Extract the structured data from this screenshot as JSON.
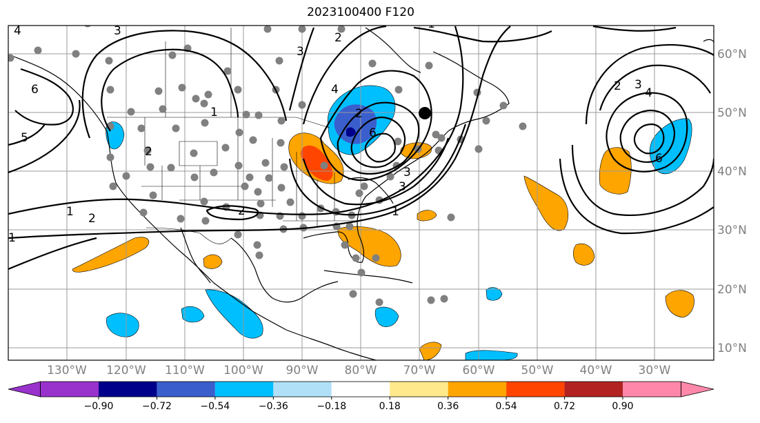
{
  "title": "2023100400 F120",
  "latitude_labels": [
    "60°N",
    "50°N",
    "40°N",
    "30°N",
    "20°N",
    "10°N"
  ],
  "longitude_labels": [
    "130°W",
    "120°W",
    "110°W",
    "100°W",
    "90°W",
    "80°W",
    "70°W",
    "60°W",
    "50°W",
    "40°W",
    "30°W"
  ],
  "colorbar": {
    "tick_labels": [
      "−0.90",
      "−0.72",
      "−0.54",
      "−0.36",
      "−0.18",
      "0.18",
      "0.36",
      "0.54",
      "0.72",
      "0.90"
    ],
    "colors": [
      "#9932cc",
      "#00008b",
      "#3a5fcd",
      "#00bfff",
      "#b0e0f8",
      "#ffffff",
      "#ffe98a",
      "#ffa500",
      "#ff4500",
      "#b22222",
      "#ff88aa"
    ]
  },
  "contour_labels": [
    "1",
    "2",
    "3",
    "4",
    "5",
    "6",
    "1",
    "2",
    "3",
    "1",
    "2",
    "3",
    "4",
    "6",
    "2",
    "3",
    "4",
    "6",
    "1",
    "2",
    "3",
    "1",
    "2"
  ],
  "colors": {
    "fill_warm": "#ffa500",
    "fill_red": "#ff4500",
    "fill_light_blue": "#00bfff",
    "fill_blue": "#3a5fcd",
    "fill_dark_blue": "#00008b",
    "station": "#808080",
    "marker": "#000000"
  }
}
